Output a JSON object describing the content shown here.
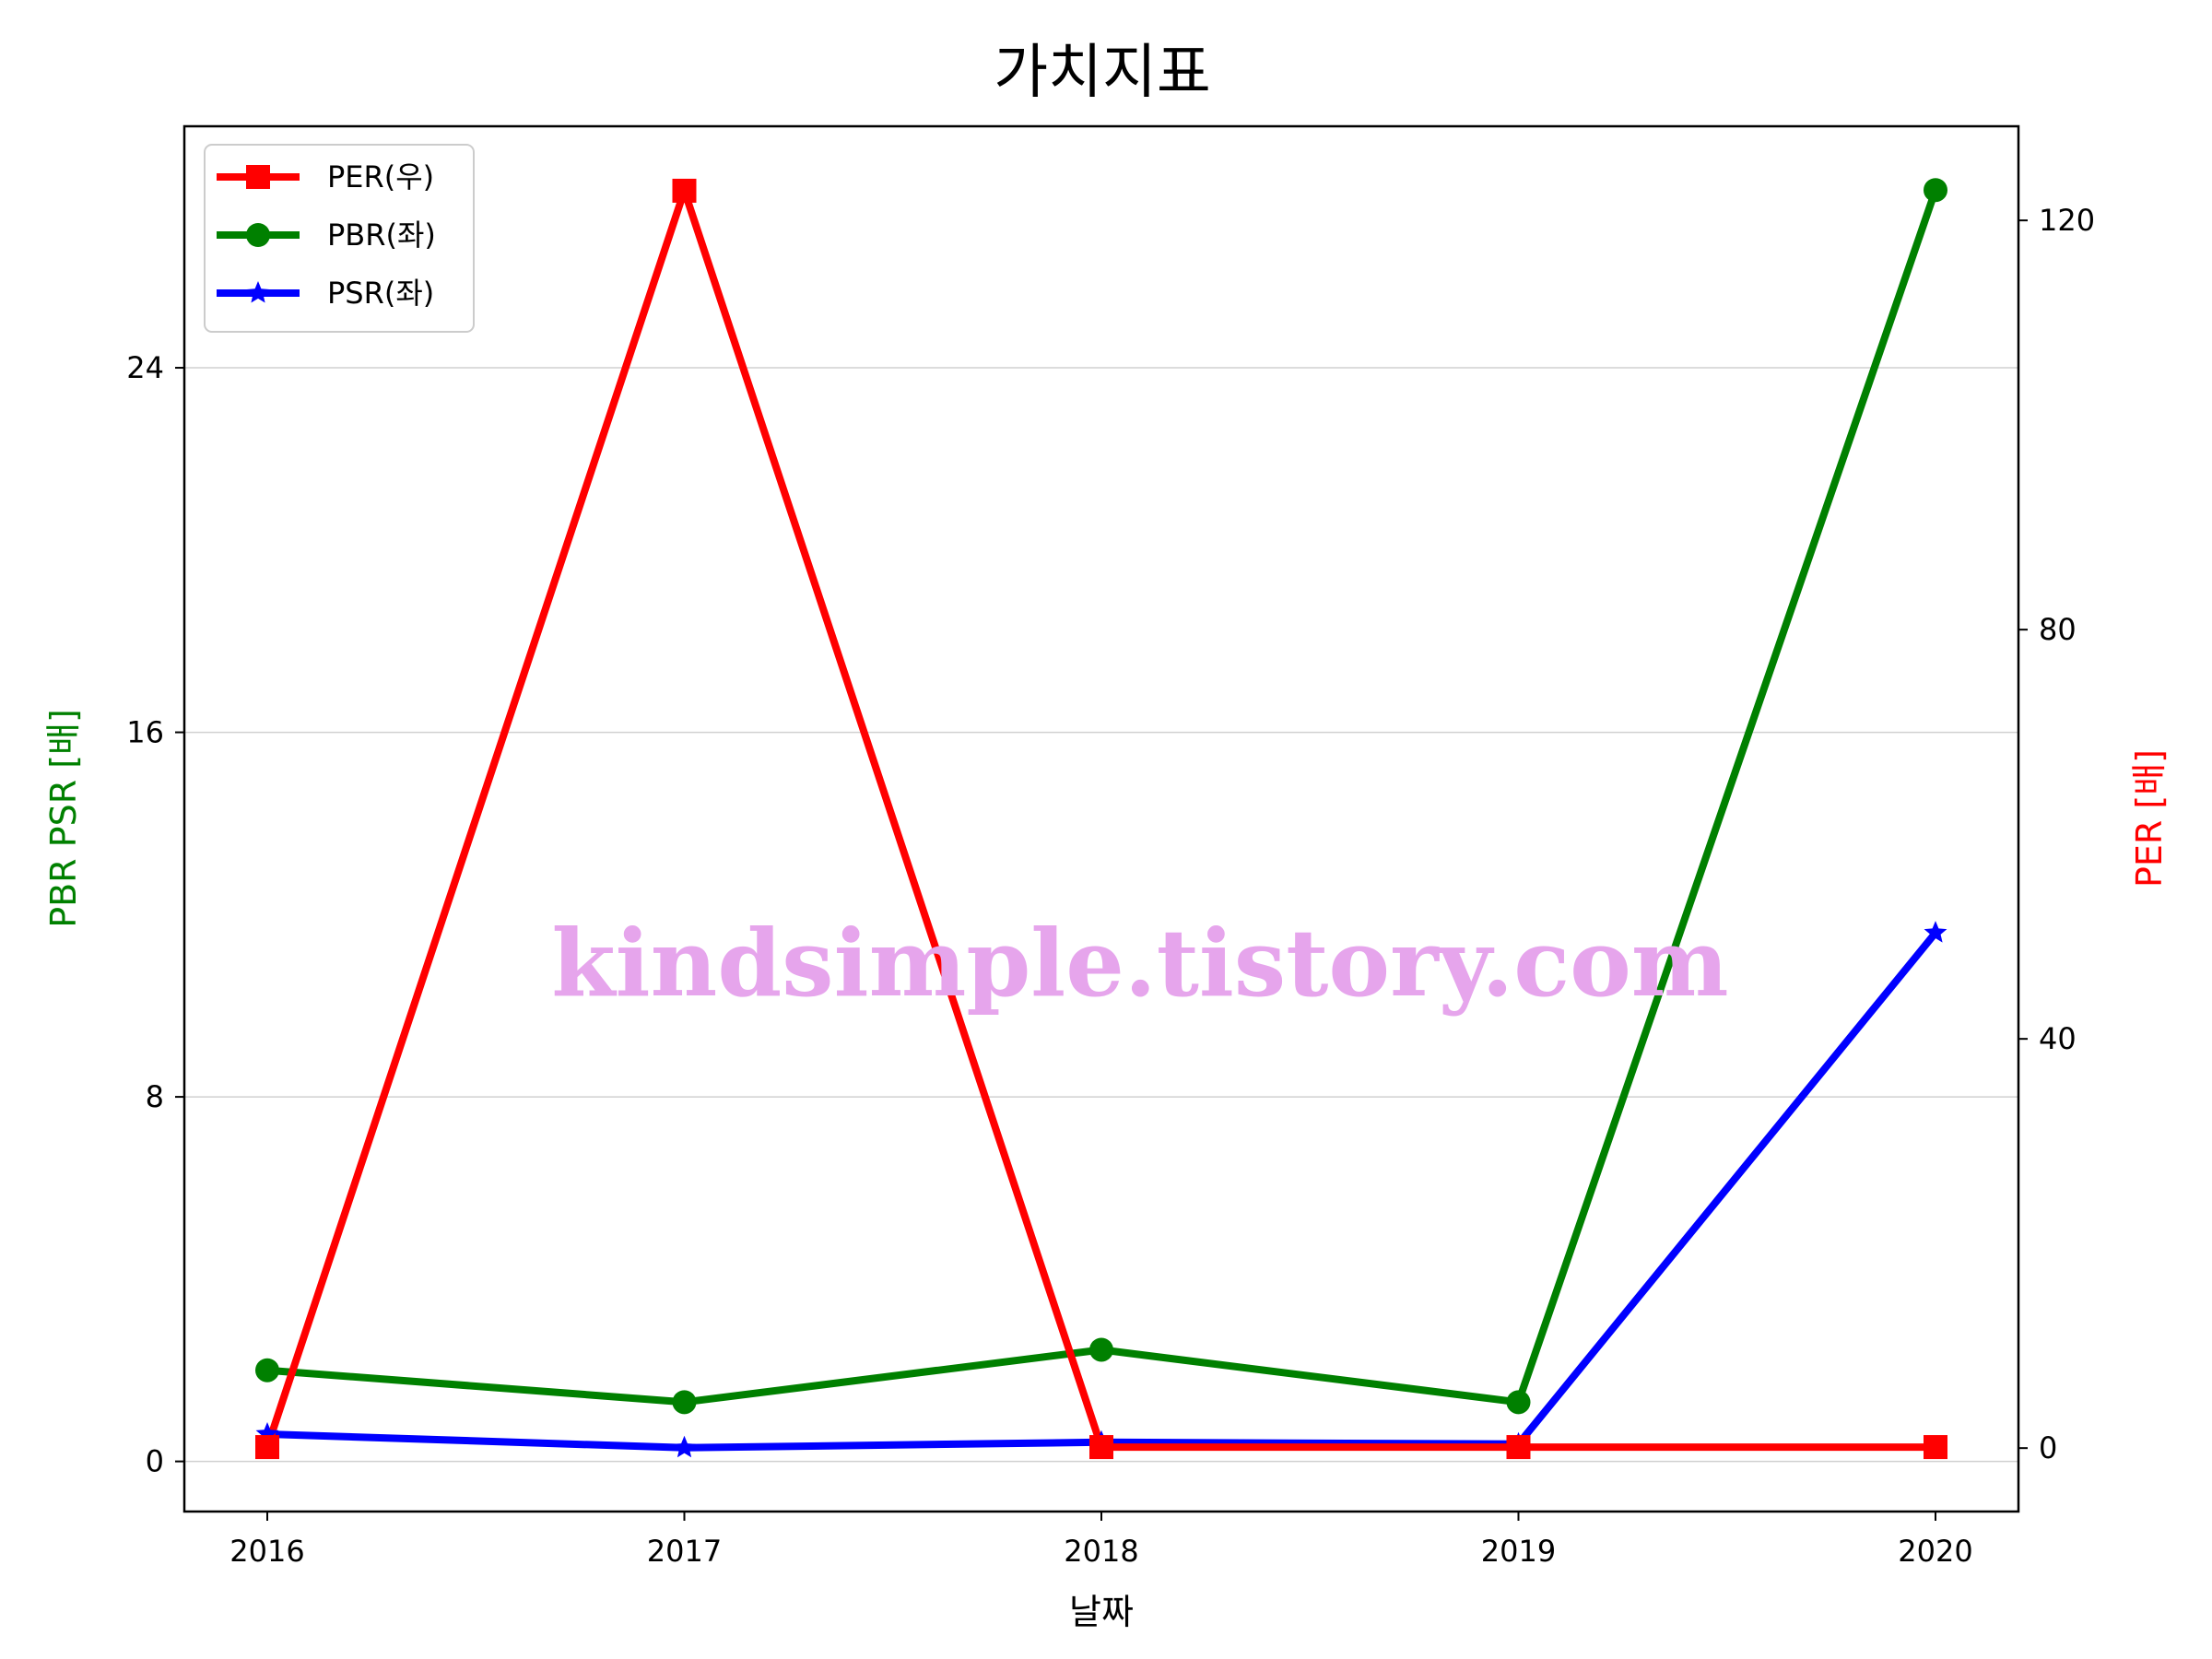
{
  "chart_data": {
    "type": "line",
    "title": "가치지표",
    "xlabel": "날짜",
    "ylabel_left": "PBR PSR [배]",
    "ylabel_right": "PER [배]",
    "categories": [
      "2016",
      "2017",
      "2018",
      "2019",
      "2020"
    ],
    "left_axis": {
      "range": [
        -1.1,
        29.3
      ],
      "ticks": [
        "0",
        "8",
        "16",
        "24"
      ],
      "tick_values": [
        0,
        8,
        16,
        24
      ]
    },
    "right_axis": {
      "range": [
        -6.2,
        129.2
      ],
      "ticks": [
        "0",
        "40",
        "80",
        "120"
      ],
      "tick_values": [
        0,
        40,
        80,
        120
      ]
    },
    "grid": "horizontal",
    "legend_position": "upper-left",
    "series": [
      {
        "name": "PER(우)",
        "axis": "right",
        "color": "#ff0000",
        "marker": "square",
        "values": [
          0.1,
          122.9,
          0.1,
          0.1,
          0.1
        ]
      },
      {
        "name": "PBR(좌)",
        "axis": "left",
        "color": "#008000",
        "marker": "circle",
        "values": [
          2.0,
          1.3,
          2.45,
          1.3,
          27.9
        ]
      },
      {
        "name": "PSR(좌)",
        "axis": "left",
        "color": "#0000ff",
        "marker": "star",
        "values": [
          0.6,
          0.3,
          0.42,
          0.38,
          11.6
        ]
      }
    ]
  },
  "watermark": {
    "text": "kindsimple.tistory.com",
    "color": "#e6a5ec"
  }
}
